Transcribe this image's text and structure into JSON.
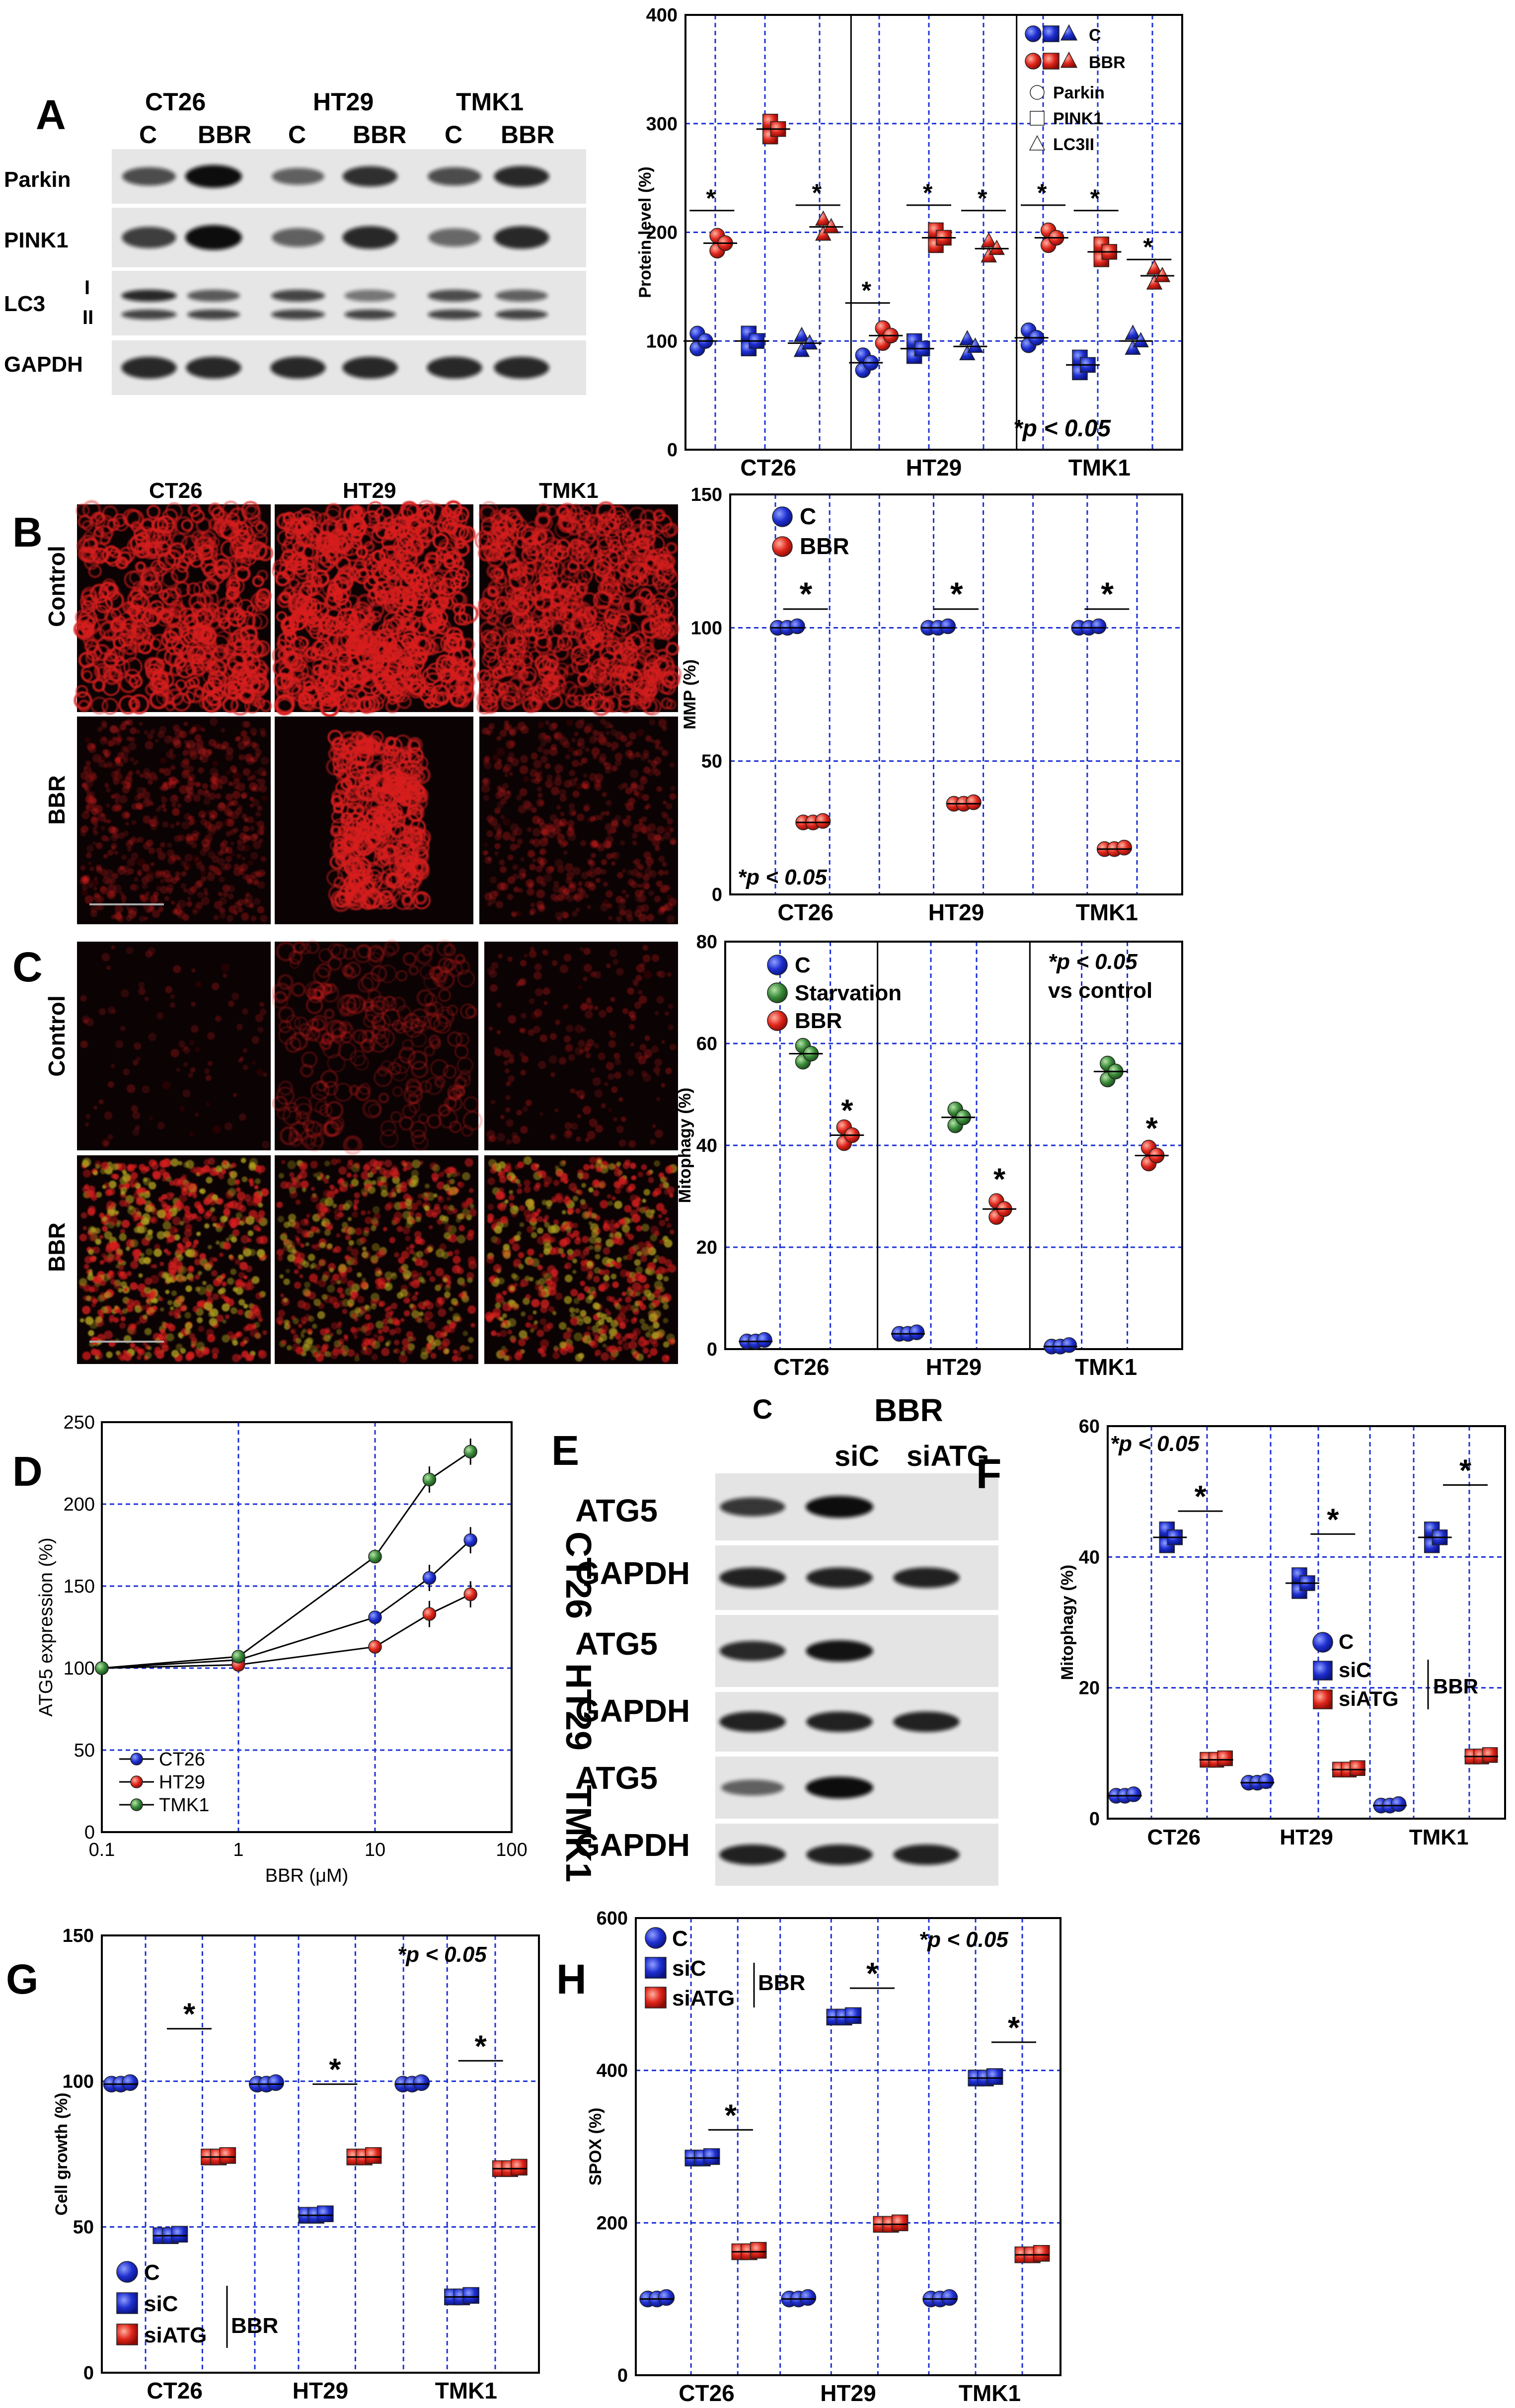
{
  "panels": {
    "A": {
      "letter": "A",
      "blot": {
        "cell_lines": [
          "CT26",
          "HT29",
          "TMK1"
        ],
        "lane_labels": [
          "C",
          "BBR",
          "C",
          "BBR",
          "C",
          "BBR"
        ],
        "row_labels": [
          "Parkin",
          "PINK1",
          "LC3",
          "GAPDH"
        ],
        "lc3_bands": [
          "I",
          "II"
        ]
      },
      "chart": {
        "ylabel": "Protein level (%)",
        "yticks": [
          "0",
          "100",
          "200",
          "300",
          "400"
        ],
        "groups": [
          "CT26",
          "HT29",
          "TMK1"
        ],
        "legend_rows": [
          "C",
          "BBR",
          "Parkin",
          "PINK1",
          "LC3II"
        ],
        "pval": "*p < 0.05"
      }
    },
    "B": {
      "letter": "B",
      "cols": [
        "CT26",
        "HT29",
        "TMK1"
      ],
      "rows": [
        "Control",
        "BBR"
      ],
      "chart": {
        "ylabel": "MMP (%)",
        "yticks": [
          "0",
          "50",
          "100",
          "150"
        ],
        "groups": [
          "CT26",
          "HT29",
          "TMK1"
        ],
        "legend": [
          "C",
          "BBR"
        ],
        "pval": "*p < 0.05"
      }
    },
    "C": {
      "letter": "C",
      "rows": [
        "Control",
        "BBR"
      ],
      "chart": {
        "ylabel": "Mitophagy (%)",
        "yticks": [
          "0",
          "20",
          "40",
          "60",
          "80"
        ],
        "groups": [
          "CT26",
          "HT29",
          "TMK1"
        ],
        "legend": [
          "C",
          "Starvation",
          "BBR"
        ],
        "pval": "*p < 0.05",
        "pval2": "vs control"
      }
    },
    "D": {
      "letter": "D",
      "chart": {
        "ylabel": "ATG5 expression (%)",
        "xlabel": "BBR (μM)",
        "yticks": [
          "0",
          "50",
          "100",
          "150",
          "200",
          "250"
        ],
        "xticks": [
          "0.1",
          "1",
          "10",
          "100"
        ],
        "legend": [
          "CT26",
          "HT29",
          "TMK1"
        ]
      }
    },
    "E": {
      "letter": "E",
      "header_c": "C",
      "header_bbr": "BBR",
      "lanes": [
        "siC",
        "siATG"
      ],
      "cell_lines": [
        "CT26",
        "HT29",
        "TMK1"
      ],
      "row_labels": [
        "ATG5",
        "GAPDH"
      ]
    },
    "F": {
      "letter": "F",
      "chart": {
        "ylabel": "Mitophagy (%)",
        "yticks": [
          "0",
          "20",
          "40",
          "60"
        ],
        "groups": [
          "CT26",
          "HT29",
          "TMK1"
        ],
        "legend": [
          "C",
          "siC",
          "siATG"
        ],
        "legend_group": "BBR",
        "pval": "*p < 0.05"
      }
    },
    "G": {
      "letter": "G",
      "chart": {
        "ylabel": "Cell growth (%)",
        "yticks": [
          "0",
          "50",
          "100",
          "150"
        ],
        "groups": [
          "CT26",
          "HT29",
          "TMK1"
        ],
        "legend": [
          "C",
          "siC",
          "siATG"
        ],
        "legend_group": "BBR",
        "pval": "*p < 0.05"
      }
    },
    "H": {
      "letter": "H",
      "chart": {
        "ylabel": "SPOX (%)",
        "yticks": [
          "0",
          "200",
          "400",
          "600"
        ],
        "groups": [
          "CT26",
          "HT29",
          "TMK1"
        ],
        "legend": [
          "C",
          "siC",
          "siATG"
        ],
        "legend_group": "BBR",
        "pval": "*p < 0.05"
      }
    }
  },
  "colors": {
    "control_blue": "#1f2fd0",
    "bbr_red": "#e0261c",
    "starvation_green": "#3a8a3a",
    "grid_blue": "#1a2fd6",
    "fluor_red": "#d81e1e"
  },
  "chart_data": [
    {
      "type": "scatter",
      "panel": "A",
      "ylabel": "Protein level (%)",
      "ylim": [
        0,
        400
      ],
      "groups": [
        "CT26",
        "HT29",
        "TMK1"
      ],
      "series": [
        {
          "name": "C",
          "marker": "Parkin",
          "values": [
            100,
            80,
            103
          ]
        },
        {
          "name": "BBR",
          "marker": "Parkin",
          "values": [
            190,
            105,
            195
          ]
        },
        {
          "name": "C",
          "marker": "PINK1",
          "values": [
            100,
            93,
            78
          ]
        },
        {
          "name": "BBR",
          "marker": "PINK1",
          "values": [
            295,
            195,
            182
          ]
        },
        {
          "name": "C",
          "marker": "LC3II",
          "values": [
            98,
            95,
            100
          ]
        },
        {
          "name": "BBR",
          "marker": "LC3II",
          "values": [
            205,
            185,
            160
          ]
        }
      ]
    },
    {
      "type": "scatter",
      "panel": "B",
      "ylabel": "MMP (%)",
      "ylim": [
        0,
        150
      ],
      "groups": [
        "CT26",
        "HT29",
        "TMK1"
      ],
      "series": [
        {
          "name": "C",
          "values": [
            100,
            100,
            100
          ]
        },
        {
          "name": "BBR",
          "values": [
            27,
            34,
            17
          ]
        }
      ]
    },
    {
      "type": "scatter",
      "panel": "C",
      "ylabel": "Mitophagy (%)",
      "ylim": [
        0,
        80
      ],
      "groups": [
        "CT26",
        "HT29",
        "TMK1"
      ],
      "series": [
        {
          "name": "C",
          "values": [
            1.5,
            3,
            0.5
          ]
        },
        {
          "name": "Starvation",
          "values": [
            58,
            45.5,
            54.5
          ]
        },
        {
          "name": "BBR",
          "values": [
            42,
            27.5,
            38
          ]
        }
      ]
    },
    {
      "type": "line",
      "panel": "D",
      "xlabel": "BBR (μM)",
      "ylabel": "ATG5 expression (%)",
      "ylim": [
        0,
        250
      ],
      "x": [
        0.1,
        1,
        10,
        25,
        50
      ],
      "series": [
        {
          "name": "CT26",
          "values": [
            100,
            105,
            131,
            155,
            178
          ]
        },
        {
          "name": "HT29",
          "values": [
            100,
            102,
            113,
            133,
            145
          ]
        },
        {
          "name": "TMK1",
          "values": [
            100,
            107,
            168,
            215,
            232
          ]
        }
      ]
    },
    {
      "type": "scatter",
      "panel": "F",
      "ylabel": "Mitophagy (%)",
      "ylim": [
        0,
        60
      ],
      "groups": [
        "CT26",
        "HT29",
        "TMK1"
      ],
      "series": [
        {
          "name": "C",
          "values": [
            3.5,
            5.5,
            2
          ]
        },
        {
          "name": "siC",
          "values": [
            43,
            36,
            43
          ]
        },
        {
          "name": "siATG",
          "values": [
            9,
            7.5,
            9.5
          ]
        }
      ]
    },
    {
      "type": "scatter",
      "panel": "G",
      "ylabel": "Cell growth (%)",
      "ylim": [
        0,
        150
      ],
      "groups": [
        "CT26",
        "HT29",
        "TMK1"
      ],
      "series": [
        {
          "name": "C",
          "values": [
            99,
            99,
            99
          ]
        },
        {
          "name": "siC",
          "values": [
            47,
            54,
            26
          ]
        },
        {
          "name": "siATG",
          "values": [
            74,
            74,
            70
          ]
        }
      ]
    },
    {
      "type": "scatter",
      "panel": "H",
      "ylabel": "SPOX (%)",
      "ylim": [
        0,
        600
      ],
      "groups": [
        "CT26",
        "HT29",
        "TMK1"
      ],
      "series": [
        {
          "name": "C",
          "values": [
            100,
            100,
            100
          ]
        },
        {
          "name": "siC",
          "values": [
            285,
            470,
            390
          ]
        },
        {
          "name": "siATG",
          "values": [
            162,
            198,
            158
          ]
        }
      ]
    }
  ]
}
